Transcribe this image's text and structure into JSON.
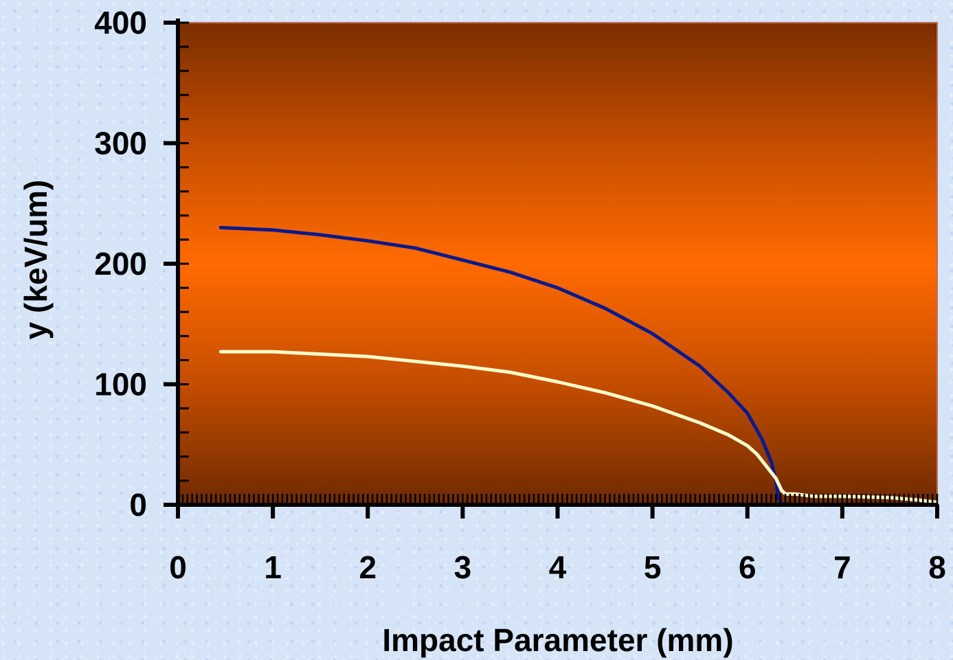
{
  "chart_data": {
    "type": "line",
    "title": "",
    "xlabel": "Impact Parameter (mm)",
    "ylabel": "y (keV/um)",
    "xlim": [
      0,
      8
    ],
    "ylim": [
      0,
      400
    ],
    "x_ticks": [
      "0",
      "1",
      "2",
      "3",
      "4",
      "5",
      "6",
      "7",
      "8"
    ],
    "y_ticks": [
      "0",
      "100",
      "200",
      "300",
      "400"
    ],
    "grid": false,
    "legend": "none",
    "background": "orange vertical gradient",
    "series": [
      {
        "color": "#0a1a8c",
        "points": [
          [
            0.45,
            230
          ],
          [
            1.0,
            228
          ],
          [
            1.5,
            224
          ],
          [
            2.0,
            219
          ],
          [
            2.5,
            213
          ],
          [
            3.0,
            203
          ],
          [
            3.5,
            193
          ],
          [
            4.0,
            180
          ],
          [
            4.5,
            163
          ],
          [
            5.0,
            142
          ],
          [
            5.5,
            115
          ],
          [
            5.8,
            93
          ],
          [
            6.0,
            76
          ],
          [
            6.15,
            55
          ],
          [
            6.25,
            36
          ],
          [
            6.3,
            20
          ],
          [
            6.33,
            5
          ],
          [
            6.36,
            1
          ],
          [
            6.5,
            0
          ],
          [
            7.0,
            0
          ],
          [
            7.5,
            0
          ],
          [
            8.0,
            0
          ]
        ]
      },
      {
        "color": "#fffbc8",
        "points": [
          [
            0.45,
            127
          ],
          [
            1.0,
            127
          ],
          [
            1.5,
            125
          ],
          [
            2.0,
            123
          ],
          [
            2.5,
            119
          ],
          [
            3.0,
            115
          ],
          [
            3.5,
            110
          ],
          [
            4.0,
            102
          ],
          [
            4.5,
            93
          ],
          [
            5.0,
            82
          ],
          [
            5.5,
            68
          ],
          [
            5.8,
            58
          ],
          [
            6.0,
            49
          ],
          [
            6.1,
            42
          ],
          [
            6.2,
            32
          ],
          [
            6.3,
            22
          ],
          [
            6.36,
            12
          ],
          [
            6.4,
            9
          ],
          [
            6.5,
            9
          ],
          [
            6.7,
            7
          ],
          [
            7.0,
            7
          ],
          [
            7.5,
            6
          ],
          [
            7.8,
            4
          ],
          [
            8.0,
            2
          ]
        ]
      }
    ]
  }
}
